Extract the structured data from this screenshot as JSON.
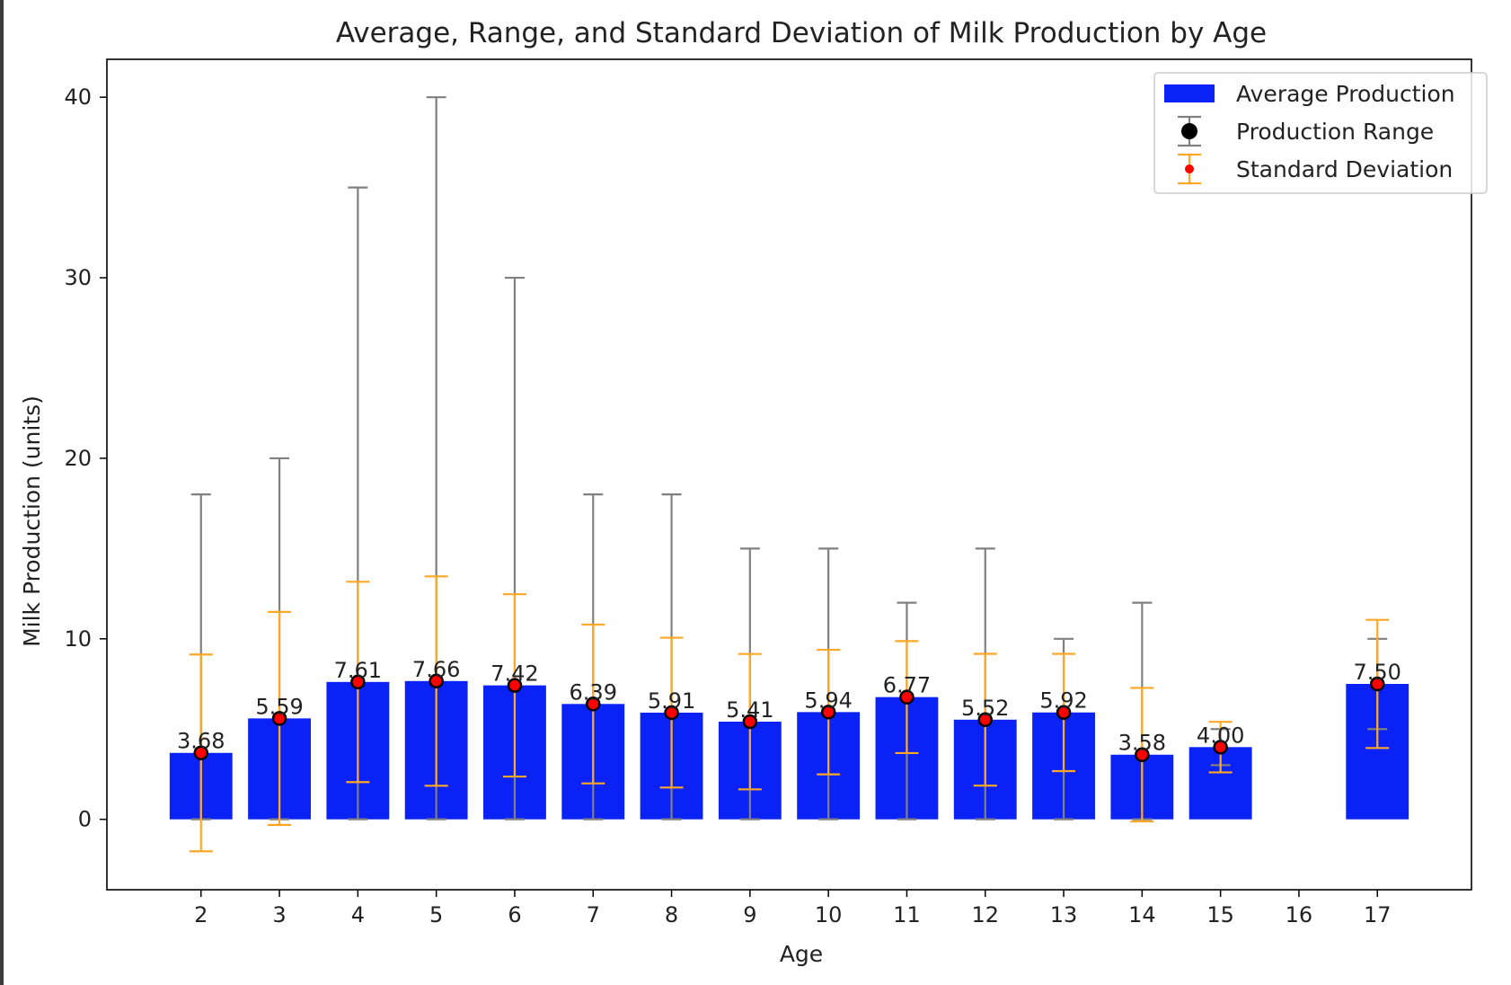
{
  "chart_data": {
    "type": "bar",
    "title": "Average, Range, and Standard Deviation of Milk Production by Age",
    "xlabel": "Age",
    "ylabel": "Milk Production (units)",
    "x_ticks": [
      "2",
      "3",
      "4",
      "5",
      "6",
      "7",
      "8",
      "9",
      "10",
      "11",
      "12",
      "13",
      "14",
      "15",
      "16",
      "17"
    ],
    "y_ticks": [
      "0",
      "10",
      "20",
      "30",
      "40"
    ],
    "ylim": [
      -3.9,
      42.1
    ],
    "xlim": [
      0.8,
      18.2
    ],
    "grid": false,
    "legend_position": "top-right",
    "legend": [
      {
        "label": "Average Production",
        "marker": "bar"
      },
      {
        "label": "Production Range",
        "marker": "errorbar-black-dot"
      },
      {
        "label": "Standard Deviation",
        "marker": "errorbar-red-dot"
      }
    ],
    "colors": {
      "bar": "#0a22f5",
      "range": "#808080",
      "std": "#ffa726",
      "marker_face": "#ff0000",
      "marker_edge": "#000000"
    },
    "points": [
      {
        "age": 2,
        "avg": 3.68,
        "label": "3.68",
        "min": 0,
        "max": 18,
        "std": 5.45
      },
      {
        "age": 3,
        "avg": 5.59,
        "label": "5.59",
        "min": 0,
        "max": 20,
        "std": 5.9
      },
      {
        "age": 4,
        "avg": 7.61,
        "label": "7.61",
        "min": 0,
        "max": 35,
        "std": 5.55
      },
      {
        "age": 5,
        "avg": 7.66,
        "label": "7.66",
        "min": 0,
        "max": 40,
        "std": 5.8
      },
      {
        "age": 6,
        "avg": 7.42,
        "label": "7.42",
        "min": 0,
        "max": 30,
        "std": 5.05
      },
      {
        "age": 7,
        "avg": 6.39,
        "label": "6.39",
        "min": 0,
        "max": 18,
        "std": 4.4
      },
      {
        "age": 8,
        "avg": 5.91,
        "label": "5.91",
        "min": 0,
        "max": 18,
        "std": 4.15
      },
      {
        "age": 9,
        "avg": 5.41,
        "label": "5.41",
        "min": 0,
        "max": 15,
        "std": 3.75
      },
      {
        "age": 10,
        "avg": 5.94,
        "label": "5.94",
        "min": 0,
        "max": 15,
        "std": 3.45
      },
      {
        "age": 11,
        "avg": 6.77,
        "label": "6.77",
        "min": 0,
        "max": 12,
        "std": 3.1
      },
      {
        "age": 12,
        "avg": 5.52,
        "label": "5.52",
        "min": 0,
        "max": 15,
        "std": 3.65
      },
      {
        "age": 13,
        "avg": 5.92,
        "label": "5.92",
        "min": 0,
        "max": 10,
        "std": 3.25
      },
      {
        "age": 14,
        "avg": 3.58,
        "label": "3.58",
        "min": 0,
        "max": 12,
        "std": 3.7
      },
      {
        "age": 15,
        "avg": 4.0,
        "label": "4.00",
        "min": 3,
        "max": 5,
        "std": 1.4
      },
      {
        "age": 17,
        "avg": 7.5,
        "label": "7.50",
        "min": 5,
        "max": 10,
        "std": 3.55
      }
    ]
  }
}
